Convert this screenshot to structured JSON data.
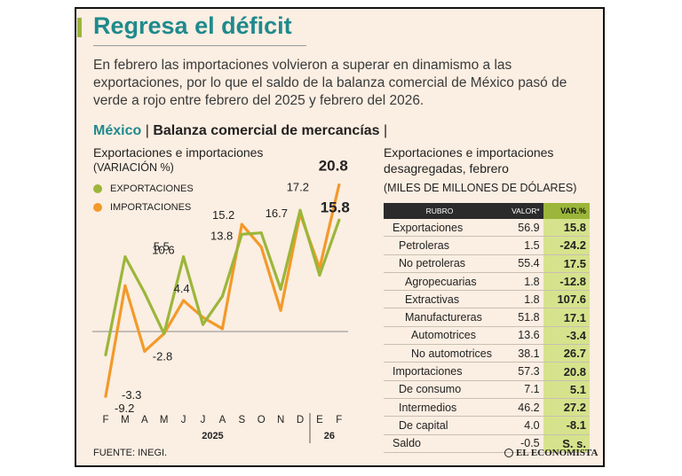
{
  "header": {
    "title": "Regresa el déficit",
    "intro": "En febrero las importaciones volvieron a superar en dinamismo a las exportaciones, por lo que el saldo de la balanza comercial de México pasó de verde a rojo entre febrero del 2025 y febrero del 2026.",
    "country": "México",
    "topic": "Balanza comercial de mercancías"
  },
  "chart_data": {
    "type": "line",
    "title": "Exportaciones e importaciones",
    "ylabel": "(VARIACIÓN %)",
    "x": [
      "F",
      "M",
      "A",
      "M",
      "J",
      "J",
      "A",
      "S",
      "O",
      "N",
      "D",
      "E",
      "F"
    ],
    "year_labels": [
      "2025",
      "26"
    ],
    "ylim": [
      -12,
      23
    ],
    "series": [
      {
        "name": "EXPORTACIONES",
        "color": "#9bb63a",
        "values": [
          -3.3,
          10.6,
          5.5,
          -0.3,
          10.6,
          1.0,
          5.0,
          13.8,
          14.0,
          6.0,
          17.2,
          8.0,
          15.8
        ],
        "labels": {
          "0": "-3.3",
          "2": "5.5",
          "4": "10.6",
          "7": "13.8",
          "10": "17.2",
          "12": "15.8"
        }
      },
      {
        "name": "IMPORTACIONES",
        "color": "#f29a2a",
        "values": [
          -9.2,
          6.5,
          -2.8,
          -0.3,
          4.4,
          2.0,
          0.4,
          15.2,
          12.0,
          3.0,
          16.7,
          9.0,
          20.8
        ],
        "labels": {
          "0": "-9.2",
          "2": "-2.8",
          "4": "4.4",
          "7": "15.2",
          "10": "16.7",
          "12": "20.8"
        }
      }
    ]
  },
  "table": {
    "title": "Exportaciones e importaciones desagregadas, febrero",
    "unit": "(MILES DE MILLONES DE DÓLARES)",
    "headers": {
      "rubro": "RUBRO",
      "valor": "VALOR*",
      "var": "VAR.%"
    },
    "rows": [
      {
        "label": "Exportaciones",
        "valor": "56.9",
        "var": "15.8"
      },
      {
        "label": "Petroleras",
        "valor": "1.5",
        "var": "-24.2"
      },
      {
        "label": "No petroleras",
        "valor": "55.4",
        "var": "17.5"
      },
      {
        "label": "Agropecuarias",
        "valor": "1.8",
        "var": "-12.8"
      },
      {
        "label": "Extractivas",
        "valor": "1.8",
        "var": "107.6"
      },
      {
        "label": "Manufactureras",
        "valor": "51.8",
        "var": "17.1"
      },
      {
        "label": "Automotrices",
        "valor": "13.6",
        "var": "-3.4"
      },
      {
        "label": "No automotrices",
        "valor": "38.1",
        "var": "26.7"
      },
      {
        "label": "Importaciones",
        "valor": "57.3",
        "var": "20.8"
      },
      {
        "label": "De consumo",
        "valor": "7.1",
        "var": "5.1"
      },
      {
        "label": "Intermedios",
        "valor": "46.2",
        "var": "27.2"
      },
      {
        "label": "De capital",
        "valor": "4.0",
        "var": "-8.1"
      },
      {
        "label": "Saldo",
        "valor": "-0.5",
        "var": "S. s."
      }
    ]
  },
  "footer": {
    "source": "FUENTE: INEGI.",
    "logo": "EL ECONOMISTA"
  }
}
